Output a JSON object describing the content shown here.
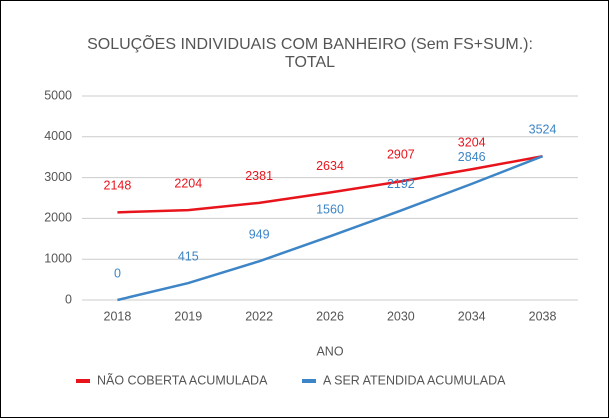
{
  "chart_data": {
    "type": "line",
    "title": "SOLUÇÕES INDIVIDUAIS COM BANHEIRO (Sem FS+SUM.): TOTAL",
    "x_label": "ANO",
    "categories": [
      "2018",
      "2019",
      "2022",
      "2026",
      "2030",
      "2034",
      "2038"
    ],
    "series": [
      {
        "name": "NÃO COBERTA ACUMULADA",
        "color": "#e8141c",
        "values": [
          2148,
          2204,
          2381,
          2634,
          2907,
          3204,
          3524
        ],
        "value_labels": [
          "2148",
          "2204",
          "2381",
          "2634",
          "2907",
          "3204",
          null
        ]
      },
      {
        "name": "A SER ATENDIDA ACUMULADA",
        "color": "#3d85c6",
        "values": [
          0,
          415,
          949,
          1560,
          2192,
          2846,
          3524
        ]
      }
    ],
    "ylim": [
      0,
      5000
    ],
    "yticks": [
      0,
      1000,
      2000,
      3000,
      4000,
      5000
    ],
    "grid": true
  }
}
